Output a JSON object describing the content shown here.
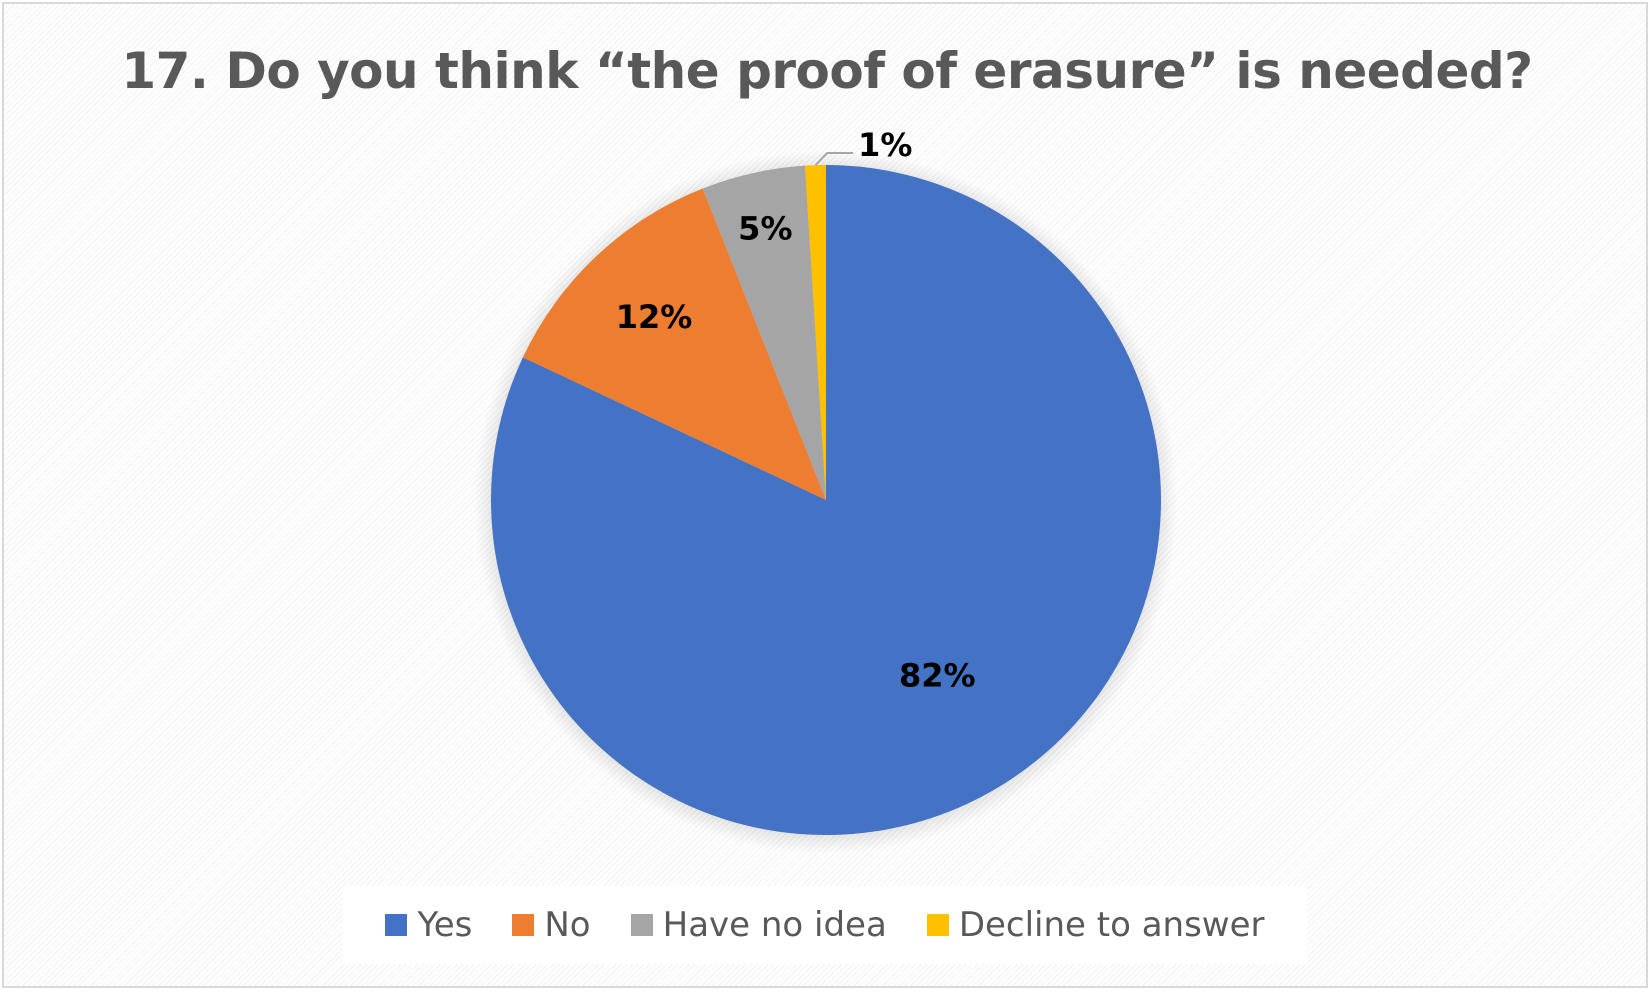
{
  "chart_data": {
    "type": "pie",
    "title": "17. Do you think “the proof of erasure” is needed?",
    "categories": [
      "Yes",
      "No",
      "Have no idea",
      "Decline to answer"
    ],
    "values": [
      82,
      12,
      5,
      1
    ],
    "data_labels": [
      "82%",
      "12%",
      "5%",
      "1%"
    ],
    "colors": [
      "#4472C4",
      "#ED7D31",
      "#A5A5A5",
      "#FFC000"
    ],
    "legend_position": "bottom",
    "start_angle": "12 o'clock, clockwise"
  }
}
